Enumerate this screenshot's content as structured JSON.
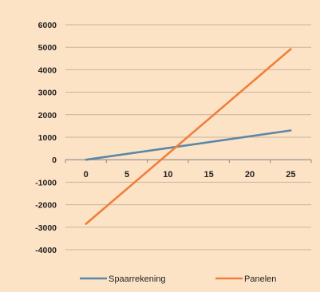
{
  "chart_data": {
    "type": "line",
    "title": "",
    "xlabel": "",
    "ylabel": "",
    "x": [
      0,
      25
    ],
    "xticks": [
      "0",
      "5",
      "10",
      "15",
      "20",
      "25"
    ],
    "xlim": [
      -2.5,
      27.5
    ],
    "ylim": [
      -4000,
      6000
    ],
    "yticks": [
      "6000",
      "5000",
      "4000",
      "3000",
      "2000",
      "1000",
      "0",
      "-1000",
      "-2000",
      "-3000",
      "-4000"
    ],
    "grid": "horizontal",
    "legend": "bottom",
    "series": [
      {
        "name": "Spaarrekening",
        "color": "#5b87a8",
        "values": [
          0,
          1300
        ]
      },
      {
        "name": "Panelen",
        "color": "#f07f3c",
        "values": [
          -2850,
          4920
        ]
      }
    ]
  }
}
